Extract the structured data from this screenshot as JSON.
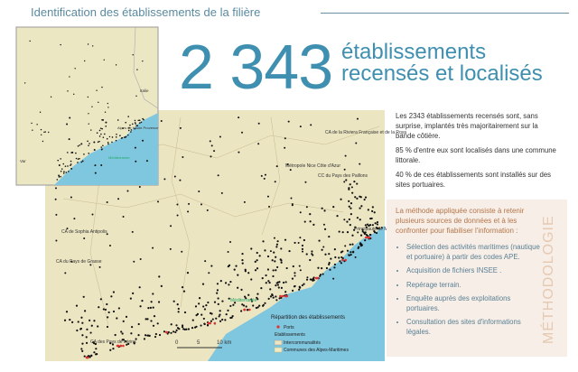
{
  "header": {
    "title": "Identification des établissements de la filière"
  },
  "headline": {
    "number": "2 343",
    "line1": "établissements",
    "line2": "recensés et localisés"
  },
  "summary": [
    "Les 2343 établissements recensés sont, sans surprise, implantés très majoritairement sur la bande côtière.",
    "85 % d'entre eux sont localisés dans une commune littorale.",
    "40 % de ces établissements sont installés sur des sites portuaires."
  ],
  "method": {
    "tag": "MÉTHODOLOGIE",
    "intro": "La méthode appliquée consiste à retenir plusieurs sources de données et à les confronter pour fiabiliser l'information :",
    "items": [
      "Sélection des activités maritimes (nautique et portuaire) à partir des codes APE.",
      "Acquisition de fichiers INSEE .",
      "Repérage terrain.",
      "Enquête auprès des exploitations portuaires.",
      "Consultation des sites d'informations légales."
    ]
  },
  "map": {
    "labels": [
      "Métropole Nice Côte d'Azur",
      "CC du Pays des Paillons",
      "CA de la Riviera Française et de la Roya",
      "Principauté de Monaco",
      "CA de Sophia Antipolis",
      "CA du Pays de Grasse",
      "CA des Pays de Lérins",
      "Méditerranée"
    ],
    "legend": {
      "title": "Répartition des établissements",
      "ports": "Ports",
      "establishments": "Etablissements",
      "intercos": "Intercommunalités",
      "communes": "Communes des Alpes-Maritimes"
    },
    "scale": [
      "0",
      "5",
      "10 km"
    ]
  },
  "inset": {
    "labels": [
      "Alpes de Haute Provence",
      "Italie",
      "Var",
      "Méditerranée"
    ]
  }
}
